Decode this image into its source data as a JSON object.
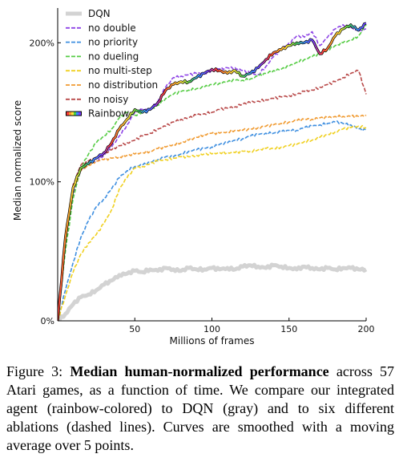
{
  "chart_data": {
    "type": "line",
    "xlabel": "Millions of frames",
    "ylabel": "Median normalized score",
    "xlim": [
      0,
      200
    ],
    "ylim": [
      0,
      225
    ],
    "xticks": [
      50,
      100,
      150,
      200
    ],
    "yticks": [
      0,
      100,
      200
    ],
    "ytick_labels": [
      "0%",
      "100%",
      "200%"
    ],
    "grid": false,
    "legend_position": "top-left",
    "series": [
      {
        "name": "DQN",
        "color": "#d3d3d3",
        "style": "solid",
        "x": [
          0,
          5,
          10,
          15,
          20,
          25,
          30,
          35,
          40,
          45,
          50,
          55,
          60,
          65,
          70,
          75,
          80,
          85,
          90,
          95,
          100,
          105,
          110,
          115,
          120,
          125,
          130,
          135,
          140,
          145,
          150,
          155,
          160,
          165,
          170,
          175,
          180,
          185,
          190,
          195,
          200
        ],
        "y": [
          0,
          5,
          12,
          17,
          19,
          22,
          26,
          29,
          33,
          34,
          36,
          35,
          37,
          36,
          38,
          37,
          36,
          38,
          37,
          37,
          38,
          37,
          38,
          37,
          39,
          40,
          39,
          38,
          40,
          39,
          38,
          37,
          39,
          38,
          37,
          38,
          37,
          38,
          38,
          37,
          37
        ]
      },
      {
        "name": "no double",
        "color": "#8e44e6",
        "style": "dashed",
        "x": [
          0,
          5,
          10,
          15,
          20,
          25,
          30,
          35,
          40,
          45,
          50,
          55,
          60,
          65,
          70,
          75,
          80,
          85,
          90,
          95,
          100,
          105,
          110,
          115,
          120,
          125,
          130,
          135,
          140,
          145,
          150,
          155,
          160,
          165,
          170,
          175,
          180,
          185,
          190,
          195,
          200
        ],
        "y": [
          0,
          55,
          92,
          108,
          113,
          115,
          119,
          125,
          133,
          141,
          150,
          152,
          152,
          158,
          168,
          175,
          176,
          177,
          178,
          178,
          180,
          181,
          182,
          182,
          180,
          178,
          177,
          183,
          190,
          195,
          200,
          205,
          204,
          208,
          198,
          204,
          210,
          213,
          211,
          208,
          210
        ]
      },
      {
        "name": "no priority",
        "color": "#3f8fe0",
        "style": "dashed",
        "x": [
          0,
          5,
          10,
          15,
          20,
          25,
          30,
          35,
          40,
          45,
          50,
          55,
          60,
          65,
          70,
          75,
          80,
          85,
          90,
          95,
          100,
          105,
          110,
          115,
          120,
          125,
          130,
          135,
          140,
          145,
          150,
          155,
          160,
          165,
          170,
          175,
          180,
          185,
          190,
          195,
          200
        ],
        "y": [
          0,
          22,
          42,
          60,
          72,
          82,
          88,
          95,
          103,
          108,
          111,
          112,
          114,
          116,
          118,
          118,
          120,
          122,
          123,
          124,
          125,
          127,
          128,
          130,
          131,
          133,
          134,
          135,
          135,
          136,
          137,
          137,
          139,
          140,
          141,
          142,
          143,
          142,
          141,
          138,
          137
        ]
      },
      {
        "name": "no dueling",
        "color": "#55cc44",
        "style": "dashed",
        "x": [
          0,
          5,
          10,
          15,
          20,
          25,
          30,
          35,
          40,
          45,
          50,
          55,
          60,
          65,
          70,
          75,
          80,
          85,
          90,
          95,
          100,
          105,
          110,
          115,
          120,
          125,
          130,
          135,
          140,
          145,
          150,
          155,
          160,
          165,
          170,
          175,
          180,
          185,
          190,
          195,
          200
        ],
        "y": [
          0,
          50,
          88,
          110,
          120,
          128,
          133,
          138,
          146,
          150,
          148,
          150,
          152,
          155,
          160,
          163,
          165,
          166,
          167,
          168,
          170,
          171,
          172,
          173,
          173,
          174,
          176,
          178,
          180,
          181,
          183,
          186,
          188,
          190,
          192,
          195,
          198,
          200,
          202,
          205,
          213
        ]
      },
      {
        "name": "no multi-step",
        "color": "#f0d020",
        "style": "dashed",
        "x": [
          0,
          5,
          10,
          15,
          20,
          25,
          30,
          35,
          40,
          45,
          50,
          55,
          60,
          65,
          70,
          75,
          80,
          85,
          90,
          95,
          100,
          105,
          110,
          115,
          120,
          125,
          130,
          135,
          140,
          145,
          150,
          155,
          160,
          165,
          170,
          175,
          180,
          185,
          190,
          195,
          200
        ],
        "y": [
          0,
          18,
          35,
          48,
          56,
          62,
          70,
          80,
          95,
          103,
          110,
          111,
          113,
          115,
          116,
          117,
          118,
          118,
          119,
          120,
          120,
          121,
          121,
          121,
          122,
          122,
          123,
          124,
          124,
          125,
          126,
          127,
          129,
          130,
          132,
          134,
          136,
          138,
          139,
          140,
          139
        ]
      },
      {
        "name": "no distribution",
        "color": "#f09a30",
        "style": "dashed",
        "x": [
          0,
          5,
          10,
          15,
          20,
          25,
          30,
          35,
          40,
          45,
          50,
          55,
          60,
          65,
          70,
          75,
          80,
          85,
          90,
          95,
          100,
          105,
          110,
          115,
          120,
          125,
          130,
          135,
          140,
          145,
          150,
          155,
          160,
          165,
          170,
          175,
          180,
          185,
          190,
          195,
          200
        ],
        "y": [
          0,
          58,
          95,
          108,
          112,
          115,
          116,
          117,
          118,
          119,
          120,
          121,
          122,
          124,
          125,
          127,
          128,
          130,
          132,
          134,
          135,
          135,
          136,
          137,
          137,
          138,
          139,
          140,
          141,
          142,
          143,
          144,
          145,
          145,
          146,
          146,
          147,
          147,
          147,
          147,
          148
        ]
      },
      {
        "name": "no noisy",
        "color": "#b84848",
        "style": "dashed",
        "x": [
          0,
          5,
          10,
          15,
          20,
          25,
          30,
          35,
          40,
          45,
          50,
          55,
          60,
          65,
          70,
          75,
          80,
          85,
          90,
          95,
          100,
          105,
          110,
          115,
          120,
          125,
          130,
          135,
          140,
          145,
          150,
          155,
          160,
          165,
          170,
          175,
          180,
          185,
          190,
          195,
          200
        ],
        "y": [
          0,
          60,
          98,
          112,
          115,
          118,
          120,
          123,
          126,
          128,
          130,
          133,
          135,
          138,
          140,
          143,
          145,
          146,
          148,
          149,
          150,
          152,
          153,
          154,
          156,
          157,
          158,
          159,
          160,
          161,
          162,
          163,
          165,
          166,
          168,
          170,
          172,
          175,
          178,
          180,
          163
        ]
      },
      {
        "name": "Rainbow",
        "color": "rainbow",
        "style": "solid",
        "x": [
          0,
          5,
          10,
          15,
          20,
          25,
          30,
          35,
          40,
          45,
          50,
          55,
          60,
          65,
          70,
          75,
          80,
          85,
          90,
          95,
          100,
          105,
          110,
          115,
          120,
          125,
          130,
          135,
          140,
          145,
          150,
          155,
          160,
          165,
          170,
          175,
          180,
          185,
          190,
          195,
          200
        ],
        "y": [
          0,
          60,
          96,
          110,
          113,
          117,
          121,
          128,
          138,
          145,
          152,
          150,
          152,
          157,
          166,
          170,
          172,
          172,
          175,
          178,
          181,
          180,
          178,
          180,
          176,
          178,
          182,
          188,
          193,
          195,
          198,
          200,
          200,
          202,
          192,
          196,
          205,
          210,
          213,
          209,
          214
        ]
      }
    ]
  },
  "caption": {
    "label": "Figure 3:",
    "bold": "Median human-normalized performance",
    "rest": " across 57 Atari games, as a function of time. We compare our integrated agent (rainbow-colored) to DQN (gray) and to six different ablations (dashed lines). Curves are smoothed with a moving average over 5 points."
  },
  "rainbow_colors": [
    "#ff3b3b",
    "#ff9a2e",
    "#ffe23a",
    "#4bd14b",
    "#3a8cff",
    "#7a3cff"
  ]
}
